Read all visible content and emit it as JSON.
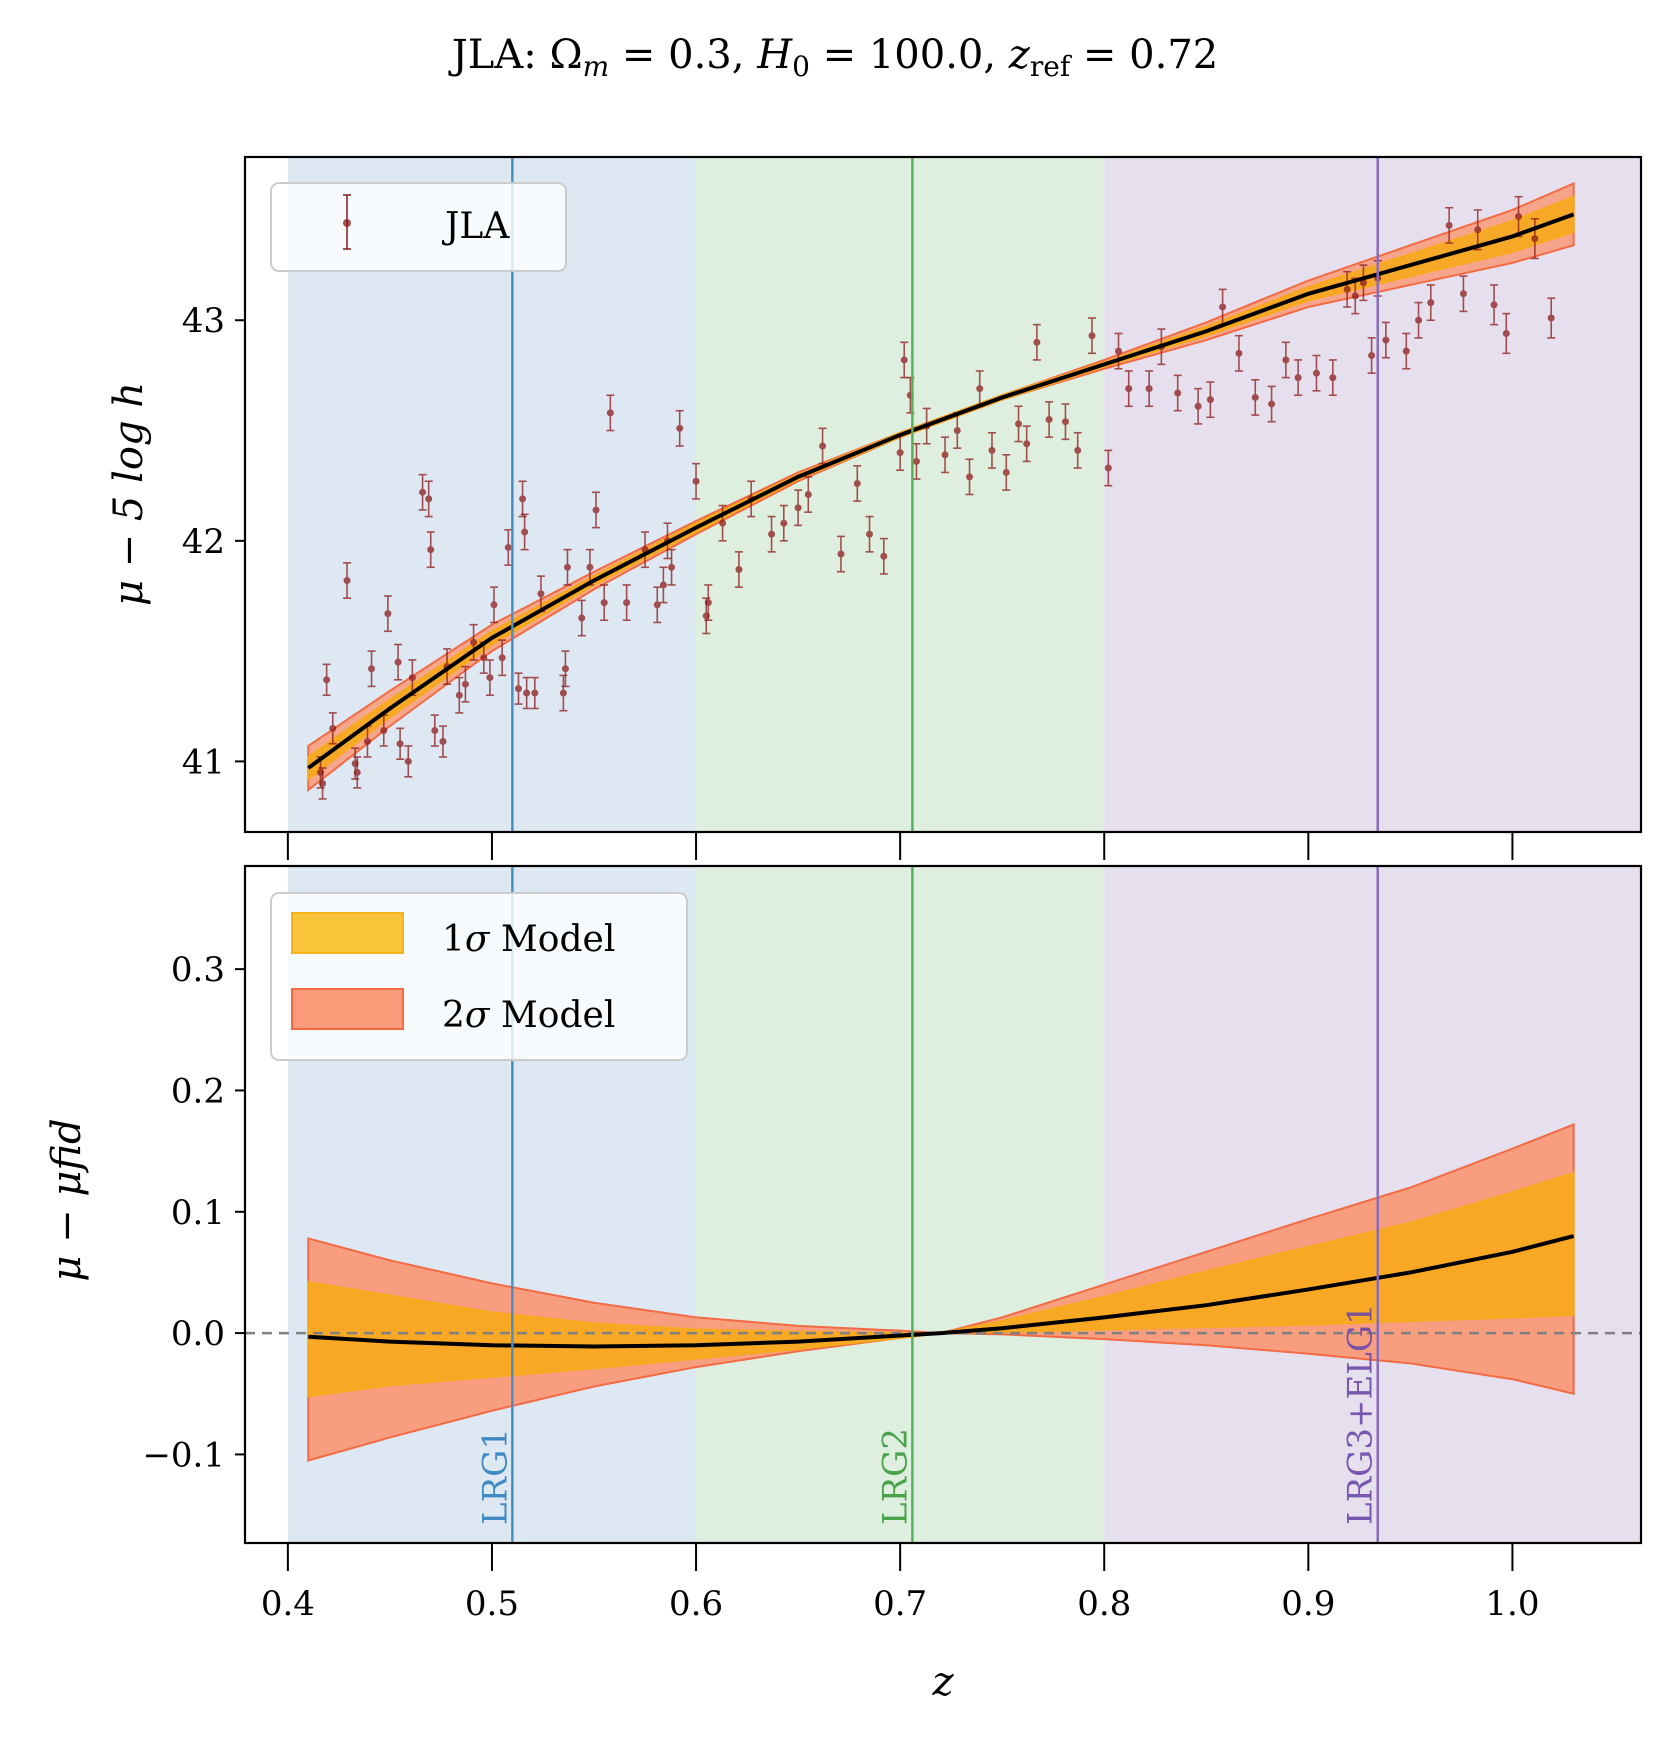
{
  "chart_data": [
    {
      "id": "top",
      "type": "scatter",
      "title": "JLA: Ωm = 0.3,  H0 = 100.0,  zref = 0.72",
      "title_parts": {
        "prefix": "JLA: ",
        "omega": "Ω",
        "omega_sub": "m",
        "omega_val": " = 0.3,  ",
        "h": "H",
        "h_sub": "0",
        "h_val": " = 100.0,  ",
        "z": "z",
        "z_sub": "ref",
        "z_val": " = 0.72"
      },
      "xlabel": "",
      "ylabel": "μ − 5 log h",
      "xlim": [
        0.379,
        1.063
      ],
      "ylim": [
        40.68,
        43.74
      ],
      "yticks": [
        41,
        42,
        43
      ],
      "ytick_labels": [
        "41",
        "42",
        "43"
      ],
      "xticks": [
        0.4,
        0.5,
        0.6,
        0.7,
        0.8,
        0.9,
        1.0
      ],
      "legend": {
        "position": "upper-left",
        "entries": [
          {
            "label": "JLA",
            "kind": "errorbar",
            "color": "#8b1a1a"
          }
        ]
      },
      "model_curve": {
        "name": "model",
        "color": "#000000",
        "x": [
          0.41,
          0.45,
          0.5,
          0.55,
          0.6,
          0.65,
          0.7,
          0.75,
          0.8,
          0.85,
          0.9,
          0.95,
          1.0,
          1.03
        ],
        "y": [
          40.97,
          41.24,
          41.56,
          41.82,
          42.06,
          42.29,
          42.48,
          42.65,
          42.8,
          42.95,
          43.12,
          43.25,
          43.38,
          43.48
        ],
        "band_1sigma": [
          0.05,
          0.04,
          0.03,
          0.02,
          0.02,
          0.01,
          0.01,
          0.01,
          0.01,
          0.02,
          0.03,
          0.05,
          0.07,
          0.08
        ],
        "band_2sigma": [
          0.1,
          0.08,
          0.06,
          0.04,
          0.03,
          0.02,
          0.01,
          0.01,
          0.02,
          0.04,
          0.06,
          0.09,
          0.12,
          0.14
        ]
      },
      "series": [
        {
          "name": "JLA",
          "color": "#8b1a1a",
          "points": [
            [
              0.416,
              40.95,
              0.07
            ],
            [
              0.417,
              40.9,
              0.07
            ],
            [
              0.419,
              41.37,
              0.07
            ],
            [
              0.422,
              41.15,
              0.07
            ],
            [
              0.429,
              41.82,
              0.08
            ],
            [
              0.433,
              40.99,
              0.07
            ],
            [
              0.434,
              40.95,
              0.07
            ],
            [
              0.439,
              41.09,
              0.07
            ],
            [
              0.441,
              41.42,
              0.08
            ],
            [
              0.447,
              41.14,
              0.07
            ],
            [
              0.449,
              41.67,
              0.08
            ],
            [
              0.454,
              41.45,
              0.08
            ],
            [
              0.455,
              41.08,
              0.07
            ],
            [
              0.459,
              41.0,
              0.07
            ],
            [
              0.461,
              41.38,
              0.08
            ],
            [
              0.466,
              42.22,
              0.08
            ],
            [
              0.469,
              42.19,
              0.08
            ],
            [
              0.47,
              41.96,
              0.08
            ],
            [
              0.472,
              41.14,
              0.07
            ],
            [
              0.476,
              41.09,
              0.07
            ],
            [
              0.478,
              41.43,
              0.08
            ],
            [
              0.484,
              41.3,
              0.08
            ],
            [
              0.487,
              41.35,
              0.08
            ],
            [
              0.491,
              41.54,
              0.08
            ],
            [
              0.496,
              41.47,
              0.07
            ],
            [
              0.499,
              41.38,
              0.08
            ],
            [
              0.501,
              41.71,
              0.08
            ],
            [
              0.505,
              41.47,
              0.08
            ],
            [
              0.508,
              41.97,
              0.08
            ],
            [
              0.513,
              41.33,
              0.07
            ],
            [
              0.515,
              42.19,
              0.08
            ],
            [
              0.516,
              42.04,
              0.08
            ],
            [
              0.517,
              41.31,
              0.07
            ],
            [
              0.521,
              41.31,
              0.07
            ],
            [
              0.524,
              41.76,
              0.08
            ],
            [
              0.535,
              41.31,
              0.08
            ],
            [
              0.536,
              41.42,
              0.08
            ],
            [
              0.537,
              41.88,
              0.08
            ],
            [
              0.544,
              41.65,
              0.08
            ],
            [
              0.548,
              41.88,
              0.08
            ],
            [
              0.551,
              42.14,
              0.08
            ],
            [
              0.555,
              41.72,
              0.08
            ],
            [
              0.558,
              42.58,
              0.08
            ],
            [
              0.566,
              41.72,
              0.08
            ],
            [
              0.575,
              41.96,
              0.08
            ],
            [
              0.581,
              41.71,
              0.08
            ],
            [
              0.584,
              41.8,
              0.08
            ],
            [
              0.586,
              42.0,
              0.08
            ],
            [
              0.588,
              41.88,
              0.08
            ],
            [
              0.592,
              42.51,
              0.08
            ],
            [
              0.6,
              42.27,
              0.08
            ],
            [
              0.605,
              41.66,
              0.08
            ],
            [
              0.606,
              41.72,
              0.08
            ],
            [
              0.613,
              42.08,
              0.08
            ],
            [
              0.621,
              41.87,
              0.08
            ],
            [
              0.627,
              42.19,
              0.08
            ],
            [
              0.637,
              42.03,
              0.08
            ],
            [
              0.643,
              42.08,
              0.08
            ],
            [
              0.65,
              42.15,
              0.08
            ],
            [
              0.655,
              42.21,
              0.08
            ],
            [
              0.662,
              42.43,
              0.08
            ],
            [
              0.671,
              41.94,
              0.08
            ],
            [
              0.679,
              42.26,
              0.08
            ],
            [
              0.685,
              42.03,
              0.08
            ],
            [
              0.692,
              41.93,
              0.08
            ],
            [
              0.7,
              42.4,
              0.08
            ],
            [
              0.702,
              42.82,
              0.08
            ],
            [
              0.705,
              42.66,
              0.08
            ],
            [
              0.708,
              42.36,
              0.08
            ],
            [
              0.713,
              42.52,
              0.08
            ],
            [
              0.722,
              42.39,
              0.08
            ],
            [
              0.728,
              42.5,
              0.08
            ],
            [
              0.734,
              42.29,
              0.08
            ],
            [
              0.739,
              42.69,
              0.08
            ],
            [
              0.745,
              42.41,
              0.08
            ],
            [
              0.752,
              42.31,
              0.08
            ],
            [
              0.758,
              42.53,
              0.08
            ],
            [
              0.762,
              42.44,
              0.08
            ],
            [
              0.767,
              42.9,
              0.08
            ],
            [
              0.773,
              42.55,
              0.08
            ],
            [
              0.781,
              42.54,
              0.08
            ],
            [
              0.787,
              42.41,
              0.08
            ],
            [
              0.794,
              42.93,
              0.08
            ],
            [
              0.802,
              42.33,
              0.08
            ],
            [
              0.807,
              42.86,
              0.08
            ],
            [
              0.812,
              42.69,
              0.08
            ],
            [
              0.822,
              42.69,
              0.08
            ],
            [
              0.828,
              42.88,
              0.08
            ],
            [
              0.836,
              42.67,
              0.08
            ],
            [
              0.846,
              42.61,
              0.08
            ],
            [
              0.852,
              42.64,
              0.08
            ],
            [
              0.858,
              43.06,
              0.08
            ],
            [
              0.866,
              42.85,
              0.08
            ],
            [
              0.874,
              42.65,
              0.08
            ],
            [
              0.882,
              42.62,
              0.08
            ],
            [
              0.889,
              42.82,
              0.08
            ],
            [
              0.895,
              42.74,
              0.08
            ],
            [
              0.904,
              42.76,
              0.08
            ],
            [
              0.912,
              42.74,
              0.08
            ],
            [
              0.919,
              43.14,
              0.08
            ],
            [
              0.923,
              43.11,
              0.08
            ],
            [
              0.927,
              43.17,
              0.08
            ],
            [
              0.931,
              42.84,
              0.08
            ],
            [
              0.934,
              43.19,
              0.08
            ],
            [
              0.938,
              42.91,
              0.08
            ],
            [
              0.948,
              42.86,
              0.08
            ],
            [
              0.954,
              43.0,
              0.08
            ],
            [
              0.96,
              43.08,
              0.08
            ],
            [
              0.969,
              43.43,
              0.08
            ],
            [
              0.976,
              43.12,
              0.08
            ],
            [
              0.983,
              43.41,
              0.09
            ],
            [
              0.991,
              43.07,
              0.09
            ],
            [
              0.997,
              42.94,
              0.09
            ],
            [
              1.003,
              43.47,
              0.09
            ],
            [
              1.011,
              43.37,
              0.09
            ],
            [
              1.019,
              43.01,
              0.09
            ]
          ]
        }
      ]
    },
    {
      "id": "bottom",
      "type": "area",
      "xlabel": "z",
      "ylabel": "μ − μfid",
      "xlim": [
        0.379,
        1.063
      ],
      "ylim": [
        -0.173,
        0.385
      ],
      "yticks": [
        -0.1,
        0.0,
        0.1,
        0.2,
        0.3
      ],
      "ytick_labels": [
        "−0.1",
        "0.0",
        "0.1",
        "0.2",
        "0.3"
      ],
      "xticks": [
        0.4,
        0.5,
        0.6,
        0.7,
        0.8,
        0.9,
        1.0
      ],
      "xtick_labels": [
        "0.4",
        "0.5",
        "0.6",
        "0.7",
        "0.8",
        "0.9",
        "1.0"
      ],
      "reference_line": {
        "y": 0.0,
        "style": "dashed",
        "color": "#808080"
      },
      "legend": {
        "position": "upper-left",
        "entries": [
          {
            "label_num": "1",
            "label_sym": "σ",
            "label_rest": " Model",
            "color": "#f9c43a",
            "edge": "#f5b21a"
          },
          {
            "label_num": "2",
            "label_sym": "σ",
            "label_rest": " Model",
            "color": "#f99a78",
            "edge": "#f26b45"
          }
        ]
      },
      "x": [
        0.41,
        0.45,
        0.5,
        0.55,
        0.6,
        0.65,
        0.7,
        0.72,
        0.75,
        0.8,
        0.85,
        0.9,
        0.95,
        1.0,
        1.03
      ],
      "mean": [
        -0.003,
        -0.007,
        -0.01,
        -0.011,
        -0.01,
        -0.007,
        -0.002,
        0.0,
        0.004,
        0.013,
        0.023,
        0.036,
        0.05,
        0.067,
        0.08
      ],
      "sigma1_upper": [
        0.042,
        0.031,
        0.017,
        0.008,
        0.003,
        0.001,
        0.0,
        0.0,
        0.01,
        0.03,
        0.051,
        0.071,
        0.091,
        0.116,
        0.132
      ],
      "sigma1_lower": [
        -0.052,
        -0.043,
        -0.036,
        -0.029,
        -0.021,
        -0.013,
        -0.004,
        0.0,
        0.001,
        0.003,
        0.005,
        0.007,
        0.01,
        0.013,
        0.015
      ],
      "sigma2_upper": [
        0.078,
        0.06,
        0.041,
        0.025,
        0.013,
        0.006,
        0.002,
        0.0,
        0.013,
        0.04,
        0.067,
        0.094,
        0.12,
        0.152,
        0.172
      ],
      "sigma2_lower": [
        -0.105,
        -0.086,
        -0.064,
        -0.044,
        -0.028,
        -0.015,
        -0.004,
        0.0,
        -0.001,
        -0.005,
        -0.01,
        -0.017,
        -0.025,
        -0.038,
        -0.05
      ]
    }
  ],
  "regions": [
    {
      "name": "LRG1",
      "z_min": 0.4,
      "z_max": 0.6,
      "fill": "#dde8f3",
      "line_z": 0.51,
      "line_color": "#4a90c4",
      "label_color": "#2f7fbf"
    },
    {
      "name": "LRG2",
      "z_min": 0.6,
      "z_max": 0.8,
      "fill": "#dfefdf",
      "line_z": 0.706,
      "line_color": "#5ab05a",
      "label_color": "#3a9a3a"
    },
    {
      "name": "LRG3+ELG1",
      "z_min": 0.8,
      "z_max": 1.063,
      "fill": "#e6e0ee",
      "line_z": 0.934,
      "line_color": "#8a6bbd",
      "label_color": "#6a48a8"
    }
  ]
}
